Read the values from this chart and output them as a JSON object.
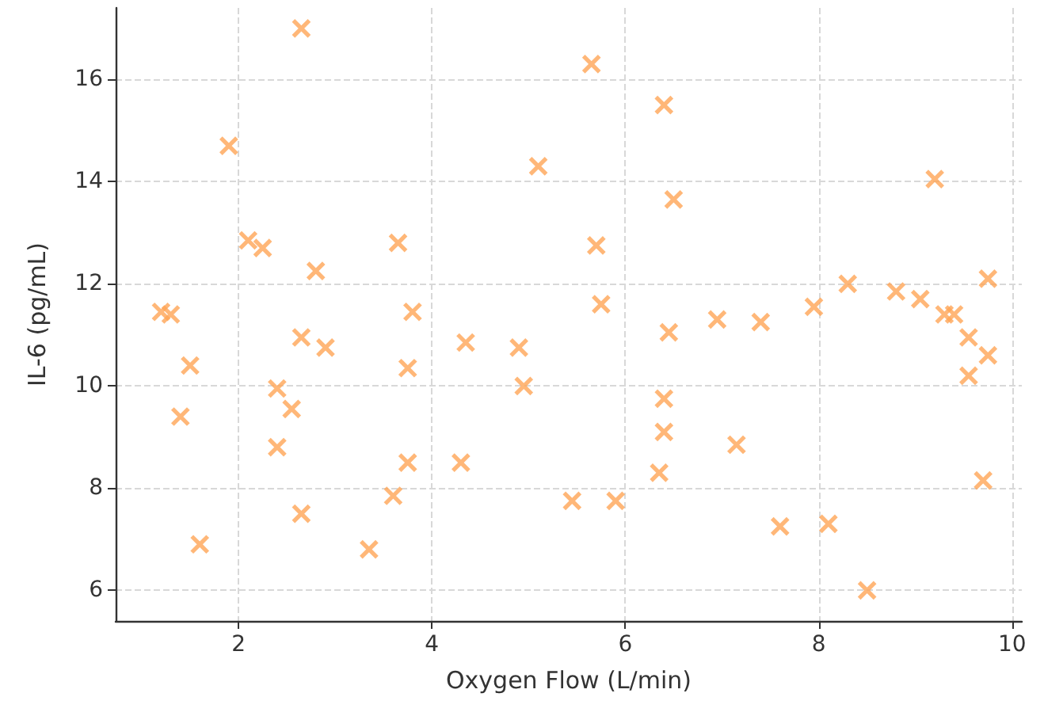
{
  "chart_data": {
    "type": "scatter",
    "xlabel": "Oxygen Flow (L/min)",
    "ylabel": "IL-6 (pg/mL)",
    "x": [
      1.2,
      1.3,
      1.5,
      1.4,
      1.6,
      1.9,
      2.1,
      2.25,
      2.4,
      2.55,
      2.4,
      2.65,
      2.65,
      2.65,
      2.8,
      2.9,
      3.35,
      3.6,
      3.65,
      3.75,
      3.75,
      3.8,
      4.3,
      4.35,
      4.9,
      4.95,
      5.1,
      5.45,
      5.65,
      5.7,
      5.75,
      5.9,
      6.35,
      6.4,
      6.4,
      6.4,
      6.45,
      6.5,
      6.95,
      7.15,
      7.4,
      7.6,
      7.95,
      8.1,
      8.3,
      8.5,
      8.8,
      9.05,
      9.2,
      9.3,
      9.4,
      9.55,
      9.55,
      9.7,
      9.75,
      9.75
    ],
    "values": [
      11.45,
      11.4,
      10.4,
      9.4,
      6.9,
      14.7,
      12.85,
      12.7,
      9.95,
      9.55,
      8.8,
      10.95,
      7.5,
      17.0,
      12.25,
      10.75,
      6.8,
      7.85,
      12.8,
      10.35,
      8.5,
      11.45,
      8.5,
      10.85,
      10.75,
      10.0,
      14.3,
      7.75,
      16.3,
      12.75,
      11.6,
      7.75,
      8.3,
      9.1,
      9.75,
      15.5,
      11.05,
      13.65,
      11.3,
      8.85,
      11.25,
      7.25,
      11.55,
      7.3,
      12.0,
      6.0,
      11.85,
      11.7,
      14.05,
      11.4,
      11.4,
      10.95,
      10.2,
      8.15,
      10.6,
      12.1
    ],
    "color": "#ffa556",
    "marker": "cross",
    "xlim": [
      0.73,
      10.1
    ],
    "ylim": [
      5.4,
      17.4
    ],
    "xticks": [
      2,
      4,
      6,
      8,
      10
    ],
    "yticks": [
      6,
      8,
      10,
      12,
      14,
      16
    ],
    "grid": true
  }
}
